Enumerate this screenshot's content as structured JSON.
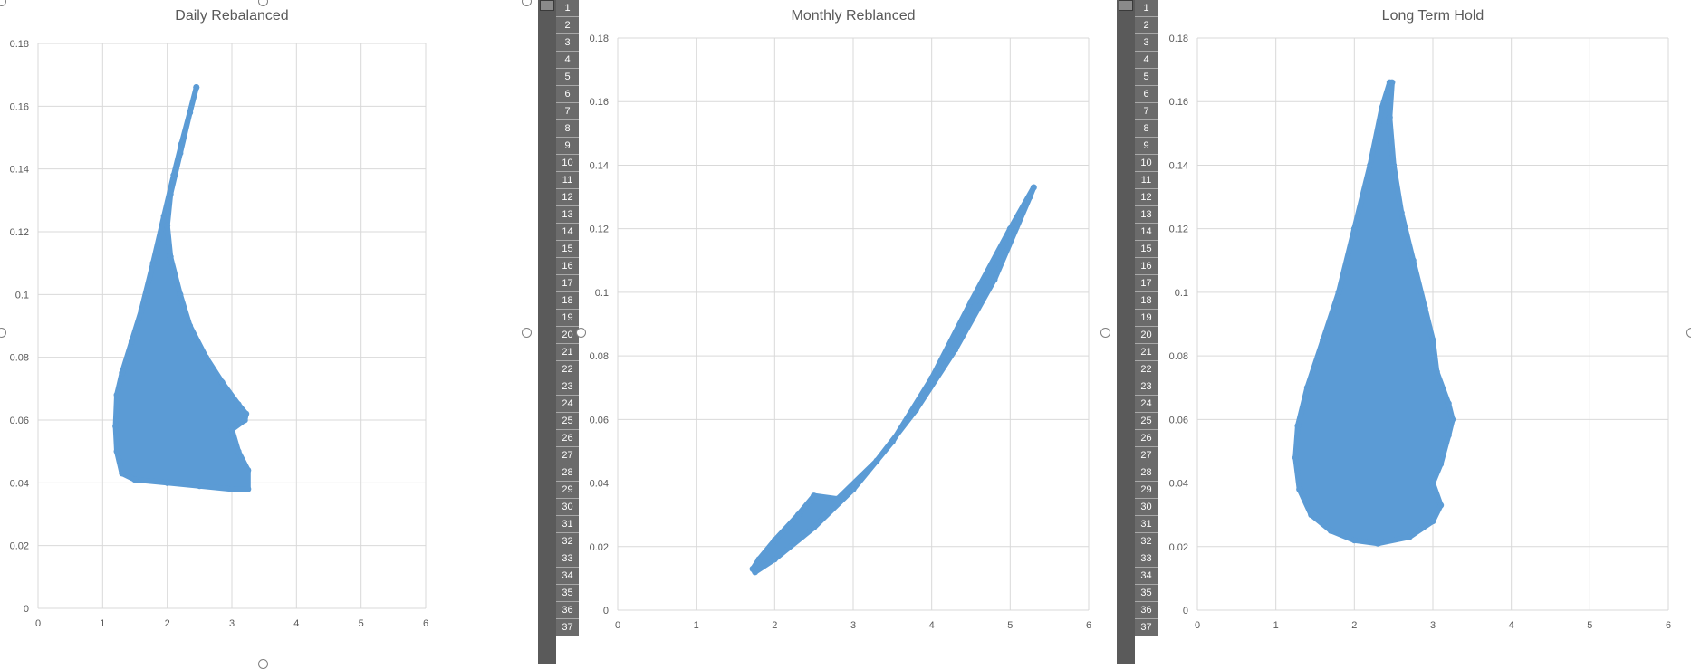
{
  "charts": [
    {
      "title": "Daily Rebalanced",
      "y_ticks": [
        "0",
        "0.02",
        "0.04",
        "0.06",
        "0.08",
        "0.1",
        "0.12",
        "0.14",
        "0.16",
        "0.18"
      ],
      "x_ticks": [
        "0",
        "1",
        "2",
        "3",
        "4",
        "5",
        "6"
      ]
    },
    {
      "title": "Monthly Reblanced",
      "y_ticks": [
        "0",
        "0.02",
        "0.04",
        "0.06",
        "0.08",
        "0.1",
        "0.12",
        "0.14",
        "0.16",
        "0.18"
      ],
      "x_ticks": [
        "0",
        "1",
        "2",
        "3",
        "4",
        "5",
        "6"
      ]
    },
    {
      "title": "Long Term Hold",
      "y_ticks": [
        "0",
        "0.02",
        "0.04",
        "0.06",
        "0.08",
        "0.1",
        "0.12",
        "0.14",
        "0.16",
        "0.18"
      ],
      "x_ticks": [
        "0",
        "1",
        "2",
        "3",
        "4",
        "5",
        "6"
      ]
    }
  ],
  "row_numbers": [
    "1",
    "2",
    "3",
    "4",
    "5",
    "6",
    "7",
    "8",
    "9",
    "10",
    "11",
    "12",
    "13",
    "14",
    "15",
    "16",
    "17",
    "18",
    "19",
    "20",
    "21",
    "22",
    "23",
    "24",
    "25",
    "26",
    "27",
    "28",
    "29",
    "30",
    "31",
    "32",
    "33",
    "34",
    "35",
    "36",
    "37"
  ],
  "chart_data": [
    {
      "type": "scatter",
      "title": "Daily Rebalanced",
      "xlabel": "",
      "ylabel": "",
      "xlim": [
        0,
        6
      ],
      "ylim": [
        0,
        0.18
      ],
      "grid": true,
      "marker_color": "#5b9bd5",
      "point_cloud_outline": [
        [
          2.45,
          0.166
        ],
        [
          2.35,
          0.158
        ],
        [
          2.22,
          0.148
        ],
        [
          2.1,
          0.138
        ],
        [
          1.95,
          0.125
        ],
        [
          1.78,
          0.11
        ],
        [
          1.6,
          0.095
        ],
        [
          1.45,
          0.085
        ],
        [
          1.3,
          0.075
        ],
        [
          1.22,
          0.068
        ],
        [
          1.2,
          0.058
        ],
        [
          1.22,
          0.05
        ],
        [
          1.3,
          0.043
        ],
        [
          1.5,
          0.041
        ],
        [
          2.0,
          0.04
        ],
        [
          2.5,
          0.039
        ],
        [
          3.0,
          0.038
        ],
        [
          3.25,
          0.038
        ],
        [
          3.25,
          0.044
        ],
        [
          3.1,
          0.05
        ],
        [
          3.0,
          0.057
        ],
        [
          3.2,
          0.06
        ],
        [
          3.22,
          0.062
        ],
        [
          3.1,
          0.065
        ],
        [
          2.85,
          0.072
        ],
        [
          2.6,
          0.08
        ],
        [
          2.35,
          0.09
        ],
        [
          2.2,
          0.1
        ],
        [
          2.05,
          0.112
        ],
        [
          2.0,
          0.122
        ],
        [
          2.05,
          0.132
        ],
        [
          2.2,
          0.145
        ],
        [
          2.35,
          0.158
        ],
        [
          2.45,
          0.166
        ]
      ]
    },
    {
      "type": "scatter",
      "title": "Monthly Reblanced",
      "xlabel": "",
      "ylabel": "",
      "xlim": [
        0,
        6
      ],
      "ylim": [
        0,
        0.18
      ],
      "grid": true,
      "marker_color": "#5b9bd5",
      "point_cloud_outline": [
        [
          1.75,
          0.012
        ],
        [
          2.0,
          0.016
        ],
        [
          2.5,
          0.026
        ],
        [
          3.0,
          0.038
        ],
        [
          3.5,
          0.053
        ],
        [
          4.0,
          0.073
        ],
        [
          4.5,
          0.097
        ],
        [
          5.0,
          0.12
        ],
        [
          5.3,
          0.133
        ],
        [
          5.25,
          0.13
        ],
        [
          4.8,
          0.104
        ],
        [
          4.3,
          0.082
        ],
        [
          3.8,
          0.063
        ],
        [
          3.3,
          0.047
        ],
        [
          2.8,
          0.035
        ],
        [
          2.5,
          0.036
        ],
        [
          2.3,
          0.03
        ],
        [
          2.0,
          0.022
        ],
        [
          1.8,
          0.016
        ],
        [
          1.72,
          0.013
        ]
      ]
    },
    {
      "type": "scatter",
      "title": "Long Term Hold",
      "xlabel": "",
      "ylabel": "",
      "xlim": [
        0,
        6
      ],
      "ylim": [
        0,
        0.18
      ],
      "grid": true,
      "marker_color": "#5b9bd5",
      "point_cloud_outline": [
        [
          2.45,
          0.166
        ],
        [
          2.35,
          0.158
        ],
        [
          2.2,
          0.14
        ],
        [
          2.0,
          0.12
        ],
        [
          1.8,
          0.1
        ],
        [
          1.6,
          0.085
        ],
        [
          1.4,
          0.07
        ],
        [
          1.28,
          0.058
        ],
        [
          1.25,
          0.048
        ],
        [
          1.3,
          0.038
        ],
        [
          1.45,
          0.03
        ],
        [
          1.7,
          0.025
        ],
        [
          2.0,
          0.022
        ],
        [
          2.3,
          0.021
        ],
        [
          2.7,
          0.023
        ],
        [
          3.0,
          0.028
        ],
        [
          3.1,
          0.033
        ],
        [
          3.0,
          0.04
        ],
        [
          3.1,
          0.046
        ],
        [
          3.2,
          0.055
        ],
        [
          3.25,
          0.06
        ],
        [
          3.2,
          0.065
        ],
        [
          3.05,
          0.075
        ],
        [
          3.0,
          0.085
        ],
        [
          2.9,
          0.095
        ],
        [
          2.75,
          0.11
        ],
        [
          2.6,
          0.125
        ],
        [
          2.5,
          0.14
        ],
        [
          2.45,
          0.155
        ],
        [
          2.48,
          0.166
        ]
      ]
    }
  ]
}
